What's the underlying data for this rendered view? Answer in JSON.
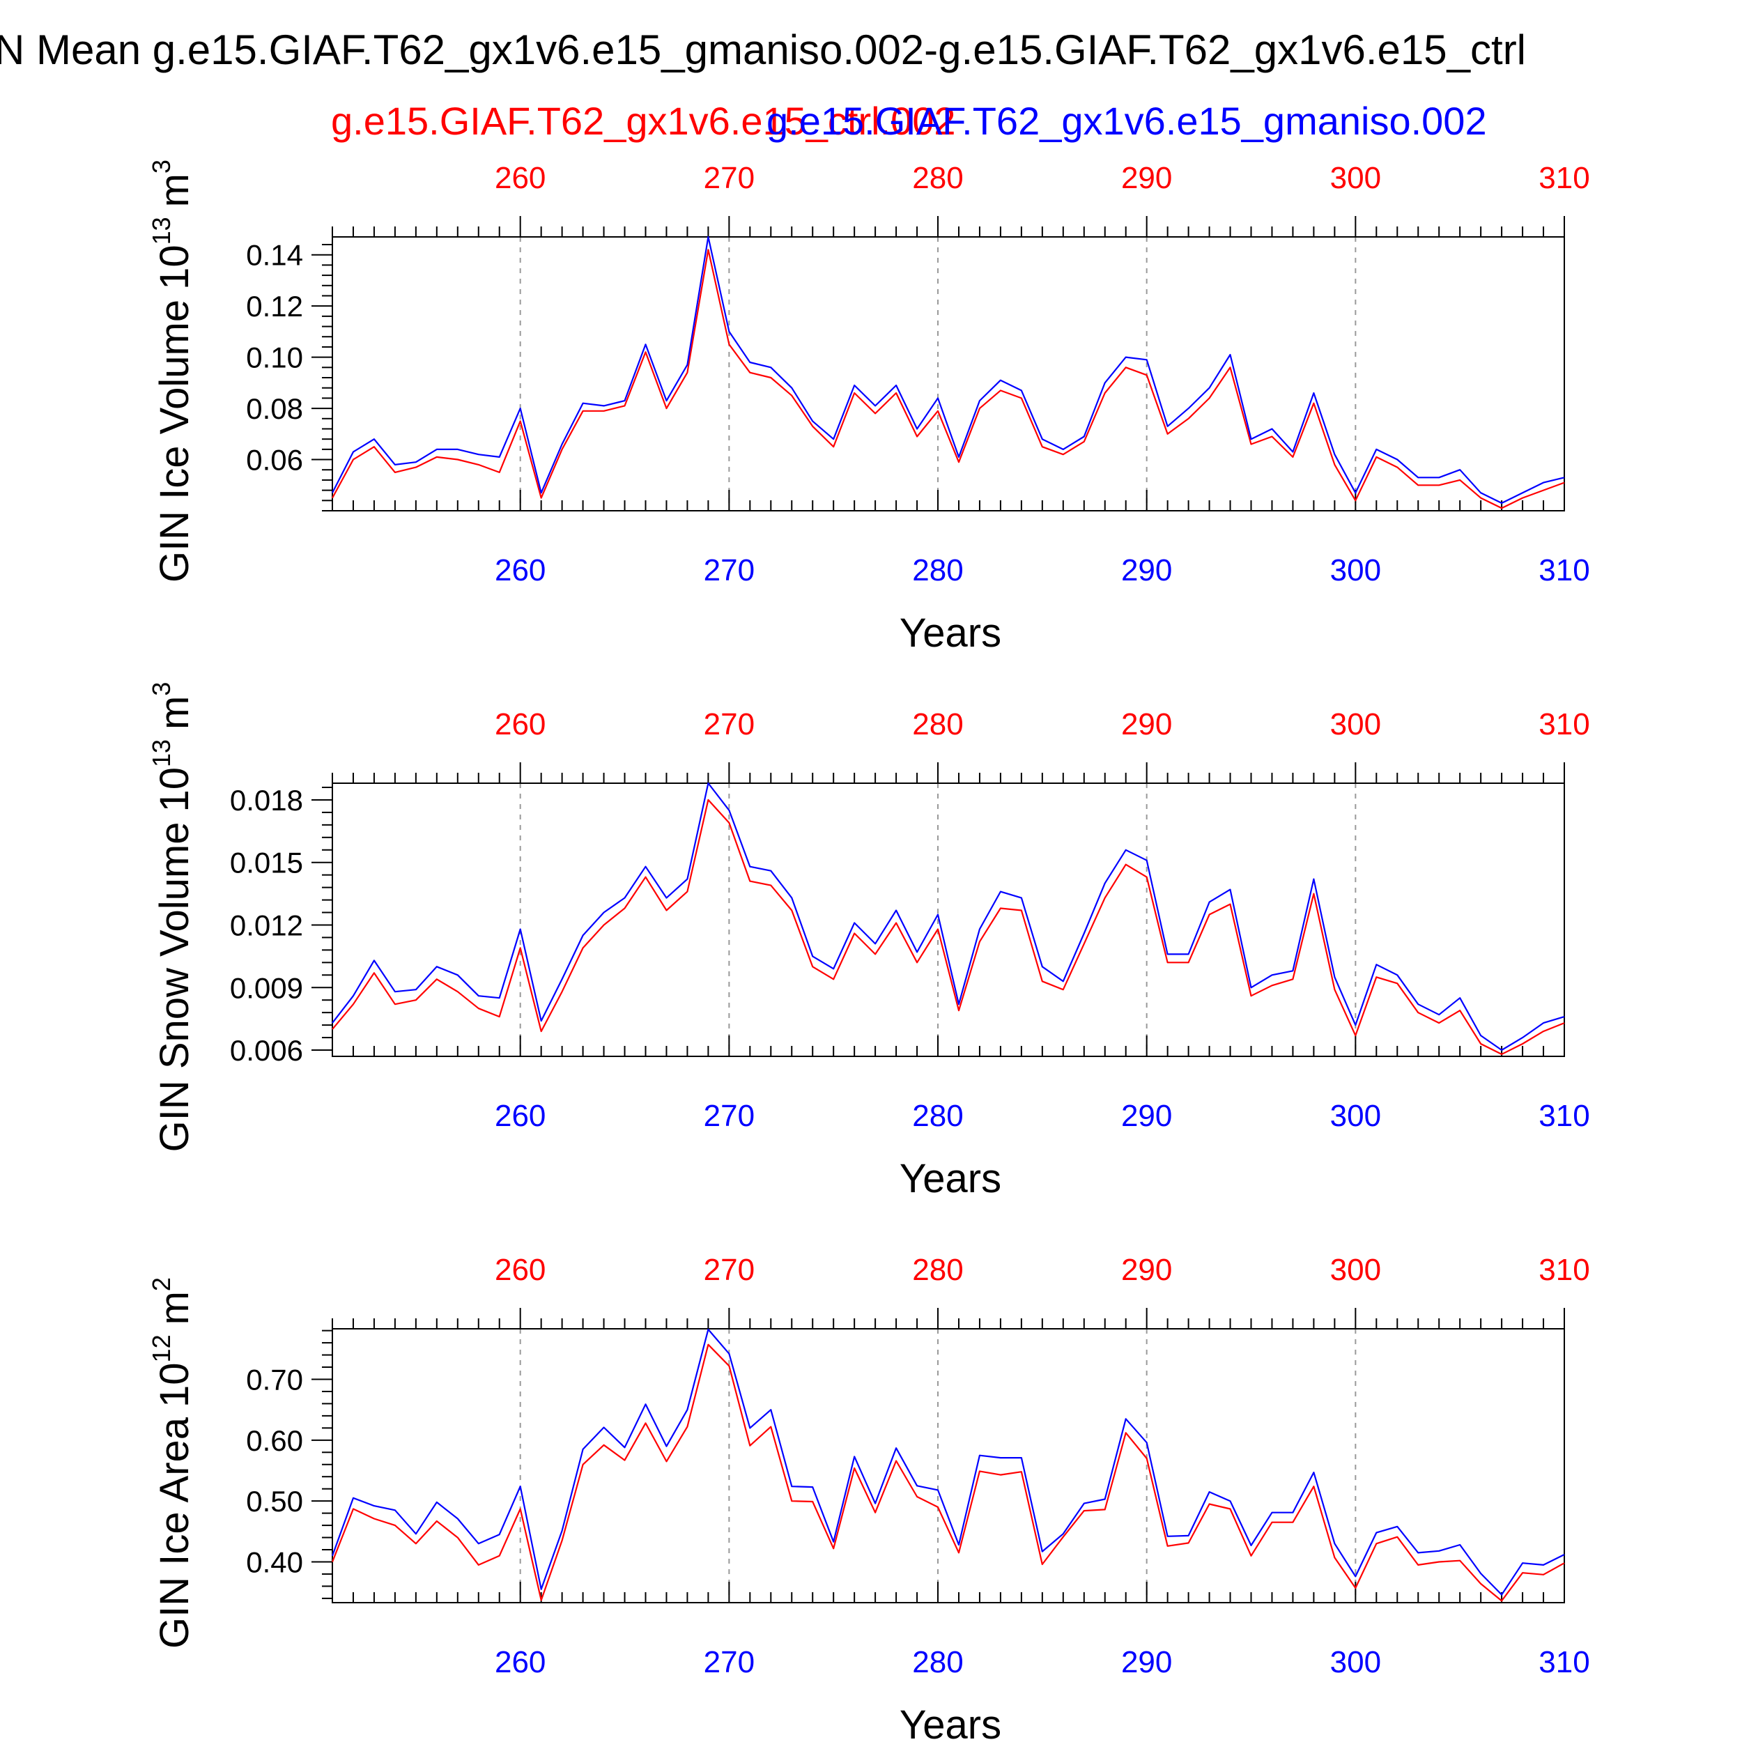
{
  "title": "N Mean g.e15.GIAF.T62_gx1v6.e15_gmaniso.002-g.e15.GIAF.T62_gx1v6.e15_ctrl",
  "legend": [
    {
      "label": "g.e15.GIAF.T62_gx1v6.e15_ctrl.002",
      "color": "#ff0000"
    },
    {
      "label": "g.e15.GIAF.T62_gx1v6.e15_gmaniso.002",
      "color": "#0000ff"
    }
  ],
  "colors": {
    "ctrl": "#ff0000",
    "gmaniso": "#0000ff",
    "axis": "#000000",
    "grid": "#999999"
  },
  "chart_data": [
    {
      "type": "line",
      "ylabel": "GIN Ice Volume",
      "yunit_base": "10",
      "yunit_exp": "13",
      "yunit_suffix": "m",
      "yunit_suffix_exp": "3",
      "xlabel": "Years",
      "xlim": [
        251,
        310
      ],
      "ylim": [
        0.04,
        0.147
      ],
      "xticks": [
        260,
        270,
        280,
        290,
        300,
        310
      ],
      "xtick_labels": [
        "260",
        "270",
        "280",
        "290",
        "300",
        "310"
      ],
      "yticks": [
        0.06,
        0.08,
        0.1,
        0.12,
        0.14
      ],
      "ytick_labels": [
        "0.06",
        "0.08",
        "0.10",
        "0.12",
        "0.14"
      ],
      "grid": "vertical dashed",
      "x": [
        251,
        252,
        253,
        254,
        255,
        256,
        257,
        258,
        259,
        260,
        261,
        262,
        263,
        264,
        265,
        266,
        267,
        268,
        269,
        270,
        271,
        272,
        273,
        274,
        275,
        276,
        277,
        278,
        279,
        280,
        281,
        282,
        283,
        284,
        285,
        286,
        287,
        288,
        289,
        290,
        291,
        292,
        293,
        294,
        295,
        296,
        297,
        298,
        299,
        300,
        301,
        302,
        303,
        304,
        305,
        306,
        307,
        308,
        309,
        310
      ],
      "series": [
        {
          "values": [
            0.045,
            0.06,
            0.065,
            0.055,
            0.057,
            0.061,
            0.06,
            0.058,
            0.055,
            0.075,
            0.045,
            0.064,
            0.079,
            0.079,
            0.081,
            0.102,
            0.08,
            0.094,
            0.142,
            0.105,
            0.094,
            0.092,
            0.085,
            0.073,
            0.065,
            0.086,
            0.078,
            0.086,
            0.069,
            0.079,
            0.059,
            0.08,
            0.087,
            0.084,
            0.065,
            0.062,
            0.067,
            0.086,
            0.096,
            0.093,
            0.07,
            0.076,
            0.084,
            0.096,
            0.066,
            0.069,
            0.061,
            0.082,
            0.058,
            0.044,
            0.061,
            0.057,
            0.05,
            0.05,
            0.052,
            0.045,
            0.041,
            0.045,
            0.048,
            0.051
          ]
        },
        {
          "values": [
            0.047,
            0.063,
            0.068,
            0.058,
            0.059,
            0.064,
            0.064,
            0.062,
            0.061,
            0.08,
            0.047,
            0.066,
            0.082,
            0.081,
            0.083,
            0.105,
            0.083,
            0.097,
            0.147,
            0.11,
            0.098,
            0.096,
            0.088,
            0.075,
            0.068,
            0.089,
            0.081,
            0.089,
            0.072,
            0.084,
            0.061,
            0.083,
            0.091,
            0.087,
            0.068,
            0.064,
            0.069,
            0.09,
            0.1,
            0.099,
            0.073,
            0.08,
            0.088,
            0.101,
            0.068,
            0.072,
            0.063,
            0.086,
            0.062,
            0.047,
            0.064,
            0.06,
            0.053,
            0.053,
            0.056,
            0.047,
            0.043,
            0.047,
            0.051,
            0.053
          ]
        }
      ]
    },
    {
      "type": "line",
      "ylabel": "GIN Snow Volume",
      "yunit_base": "10",
      "yunit_exp": "13",
      "yunit_suffix": "m",
      "yunit_suffix_exp": "3",
      "xlabel": "Years",
      "xlim": [
        251,
        310
      ],
      "ylim": [
        0.0057,
        0.0188
      ],
      "xticks": [
        260,
        270,
        280,
        290,
        300,
        310
      ],
      "xtick_labels": [
        "260",
        "270",
        "280",
        "290",
        "300",
        "310"
      ],
      "yticks": [
        0.006,
        0.009,
        0.012,
        0.015,
        0.018
      ],
      "ytick_labels": [
        "0.006",
        "0.009",
        "0.012",
        "0.015",
        "0.018"
      ],
      "grid": "vertical dashed",
      "x": [
        251,
        252,
        253,
        254,
        255,
        256,
        257,
        258,
        259,
        260,
        261,
        262,
        263,
        264,
        265,
        266,
        267,
        268,
        269,
        270,
        271,
        272,
        273,
        274,
        275,
        276,
        277,
        278,
        279,
        280,
        281,
        282,
        283,
        284,
        285,
        286,
        287,
        288,
        289,
        290,
        291,
        292,
        293,
        294,
        295,
        296,
        297,
        298,
        299,
        300,
        301,
        302,
        303,
        304,
        305,
        306,
        307,
        308,
        309,
        310
      ],
      "series": [
        {
          "values": [
            0.007,
            0.0082,
            0.0097,
            0.0082,
            0.0084,
            0.0094,
            0.0088,
            0.008,
            0.0076,
            0.0109,
            0.0069,
            0.0088,
            0.0109,
            0.012,
            0.0128,
            0.0143,
            0.0127,
            0.0136,
            0.018,
            0.0169,
            0.0141,
            0.0139,
            0.0127,
            0.01,
            0.0094,
            0.0116,
            0.0106,
            0.0121,
            0.0102,
            0.0118,
            0.0079,
            0.0112,
            0.0128,
            0.0127,
            0.0093,
            0.0089,
            0.0111,
            0.0133,
            0.0149,
            0.0143,
            0.0102,
            0.0102,
            0.0125,
            0.013,
            0.0086,
            0.0091,
            0.0094,
            0.0135,
            0.0089,
            0.0067,
            0.0095,
            0.0092,
            0.0078,
            0.0073,
            0.0079,
            0.0063,
            0.0058,
            0.0063,
            0.0069,
            0.0073
          ]
        },
        {
          "values": [
            0.0073,
            0.0086,
            0.0103,
            0.0088,
            0.0089,
            0.01,
            0.0096,
            0.0086,
            0.0085,
            0.0118,
            0.0074,
            0.0094,
            0.0115,
            0.0126,
            0.0133,
            0.0148,
            0.0133,
            0.0142,
            0.0188,
            0.0175,
            0.0148,
            0.0146,
            0.0133,
            0.0105,
            0.0099,
            0.0121,
            0.0111,
            0.0127,
            0.0107,
            0.0125,
            0.0082,
            0.0118,
            0.0136,
            0.0133,
            0.01,
            0.0093,
            0.0116,
            0.014,
            0.0156,
            0.0151,
            0.0106,
            0.0106,
            0.0131,
            0.0137,
            0.009,
            0.0096,
            0.0098,
            0.0142,
            0.0095,
            0.0072,
            0.0101,
            0.0096,
            0.0082,
            0.0077,
            0.0085,
            0.0067,
            0.006,
            0.0066,
            0.0073,
            0.0076
          ]
        }
      ]
    },
    {
      "type": "line",
      "ylabel": "GIN Ice Area",
      "yunit_base": "10",
      "yunit_exp": "12",
      "yunit_suffix": "m",
      "yunit_suffix_exp": "2",
      "xlabel": "Years",
      "xlim": [
        251,
        310
      ],
      "ylim": [
        0.333,
        0.783
      ],
      "xticks": [
        260,
        270,
        280,
        290,
        300,
        310
      ],
      "xtick_labels": [
        "260",
        "270",
        "280",
        "290",
        "300",
        "310"
      ],
      "yticks": [
        0.4,
        0.5,
        0.6,
        0.7
      ],
      "ytick_labels": [
        "0.40",
        "0.50",
        "0.60",
        "0.70"
      ],
      "grid": "vertical dashed",
      "x": [
        251,
        252,
        253,
        254,
        255,
        256,
        257,
        258,
        259,
        260,
        261,
        262,
        263,
        264,
        265,
        266,
        267,
        268,
        269,
        270,
        271,
        272,
        273,
        274,
        275,
        276,
        277,
        278,
        279,
        280,
        281,
        282,
        283,
        284,
        285,
        286,
        287,
        288,
        289,
        290,
        291,
        292,
        293,
        294,
        295,
        296,
        297,
        298,
        299,
        300,
        301,
        302,
        303,
        304,
        305,
        306,
        307,
        308,
        309,
        310
      ],
      "series": [
        {
          "values": [
            0.4,
            0.487,
            0.471,
            0.46,
            0.43,
            0.467,
            0.44,
            0.395,
            0.41,
            0.487,
            0.337,
            0.435,
            0.56,
            0.592,
            0.567,
            0.628,
            0.565,
            0.622,
            0.757,
            0.722,
            0.591,
            0.622,
            0.5,
            0.499,
            0.422,
            0.554,
            0.481,
            0.566,
            0.507,
            0.49,
            0.415,
            0.549,
            0.543,
            0.548,
            0.396,
            0.441,
            0.484,
            0.486,
            0.612,
            0.57,
            0.426,
            0.431,
            0.495,
            0.487,
            0.41,
            0.465,
            0.465,
            0.524,
            0.407,
            0.357,
            0.43,
            0.441,
            0.395,
            0.4,
            0.402,
            0.364,
            0.336,
            0.382,
            0.379,
            0.398
          ]
        },
        {
          "values": [
            0.41,
            0.505,
            0.492,
            0.485,
            0.446,
            0.498,
            0.471,
            0.43,
            0.445,
            0.524,
            0.355,
            0.451,
            0.585,
            0.621,
            0.588,
            0.659,
            0.59,
            0.65,
            0.782,
            0.742,
            0.62,
            0.65,
            0.524,
            0.523,
            0.433,
            0.573,
            0.496,
            0.587,
            0.525,
            0.518,
            0.428,
            0.575,
            0.571,
            0.571,
            0.417,
            0.446,
            0.496,
            0.503,
            0.635,
            0.596,
            0.442,
            0.443,
            0.515,
            0.5,
            0.427,
            0.481,
            0.481,
            0.547,
            0.43,
            0.376,
            0.448,
            0.458,
            0.415,
            0.418,
            0.428,
            0.381,
            0.346,
            0.398,
            0.395,
            0.412
          ]
        }
      ]
    }
  ]
}
